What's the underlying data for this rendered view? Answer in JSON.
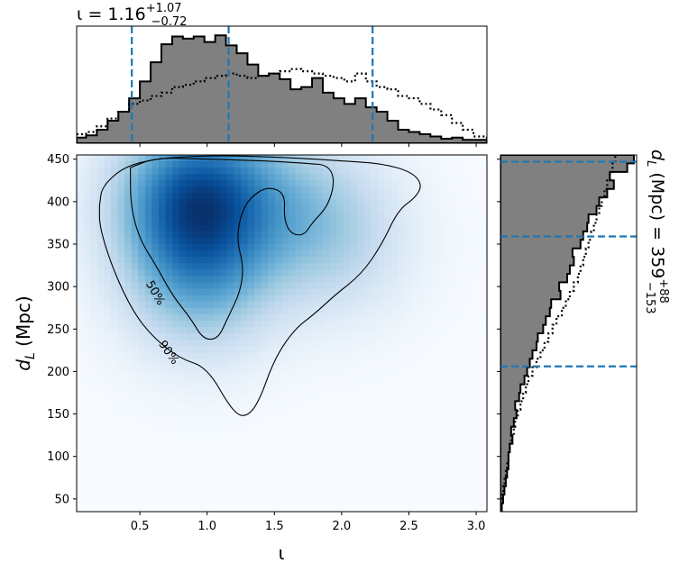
{
  "chart_data": [
    {
      "type": "heatmap",
      "panel": "joint",
      "xlabel": "ι",
      "ylabel_base": "d",
      "ylabel_sub": "L",
      "ylabel_unit": " (Mpc)",
      "xlim": [
        0.03,
        3.08
      ],
      "ylim": [
        35,
        455
      ],
      "xticks": [
        "0.5",
        "1.0",
        "1.5",
        "2.0",
        "2.5",
        "3.0"
      ],
      "yticks": [
        "50",
        "100",
        "150",
        "200",
        "250",
        "300",
        "350",
        "400",
        "450"
      ],
      "colormap": "Blues",
      "density_peaks": [
        {
          "x": 0.85,
          "y": 400,
          "weight": 1.0
        },
        {
          "x": 1.05,
          "y": 410,
          "weight": 0.7
        },
        {
          "x": 0.95,
          "y": 310,
          "weight": 0.75
        },
        {
          "x": 1.7,
          "y": 390,
          "weight": 0.45
        },
        {
          "x": 2.0,
          "y": 350,
          "weight": 0.3
        }
      ],
      "contours": [
        {
          "label": "50%",
          "points": [
            [
              0.43,
              440
            ],
            [
              0.62,
              452
            ],
            [
              1.0,
              450
            ],
            [
              1.45,
              448
            ],
            [
              1.75,
              445
            ],
            [
              1.9,
              443
            ],
            [
              1.95,
              425
            ],
            [
              1.9,
              395
            ],
            [
              1.78,
              375
            ],
            [
              1.72,
              360
            ],
            [
              1.62,
              362
            ],
            [
              1.57,
              380
            ],
            [
              1.58,
              410
            ],
            [
              1.45,
              418
            ],
            [
              1.32,
              405
            ],
            [
              1.25,
              385
            ],
            [
              1.22,
              355
            ],
            [
              1.27,
              325
            ],
            [
              1.25,
              295
            ],
            [
              1.15,
              262
            ],
            [
              1.08,
              238
            ],
            [
              0.97,
              238
            ],
            [
              0.88,
              262
            ],
            [
              0.74,
              290
            ],
            [
              0.62,
              325
            ],
            [
              0.5,
              355
            ],
            [
              0.43,
              395
            ],
            [
              0.43,
              440
            ]
          ]
        },
        {
          "label": "90%",
          "points": [
            [
              0.2,
              395
            ],
            [
              0.22,
              420
            ],
            [
              0.45,
              448
            ],
            [
              1.0,
              455
            ],
            [
              1.6,
              452
            ],
            [
              2.0,
              448
            ],
            [
              2.3,
              445
            ],
            [
              2.52,
              435
            ],
            [
              2.6,
              420
            ],
            [
              2.55,
              405
            ],
            [
              2.42,
              390
            ],
            [
              2.3,
              350
            ],
            [
              2.15,
              315
            ],
            [
              1.95,
              290
            ],
            [
              1.8,
              268
            ],
            [
              1.65,
              250
            ],
            [
              1.5,
              215
            ],
            [
              1.38,
              162
            ],
            [
              1.28,
              145
            ],
            [
              1.18,
              155
            ],
            [
              1.0,
              205
            ],
            [
              0.8,
              215
            ],
            [
              0.6,
              240
            ],
            [
              0.45,
              270
            ],
            [
              0.3,
              320
            ],
            [
              0.2,
              370
            ],
            [
              0.2,
              395
            ]
          ]
        }
      ],
      "contour_labels": [
        "50%",
        "90%"
      ]
    },
    {
      "type": "area",
      "panel": "top-marginal",
      "annotation_base": "ι = 1.16",
      "annotation_sup": "+1.07",
      "annotation_sub": "−0.72",
      "bin_edges": [
        0.03,
        0.1,
        0.18,
        0.26,
        0.34,
        0.42,
        0.5,
        0.58,
        0.66,
        0.74,
        0.82,
        0.9,
        0.98,
        1.06,
        1.14,
        1.22,
        1.3,
        1.38,
        1.46,
        1.54,
        1.62,
        1.7,
        1.78,
        1.86,
        1.94,
        2.02,
        2.1,
        2.18,
        2.26,
        2.34,
        2.42,
        2.5,
        2.58,
        2.66,
        2.74,
        2.82,
        2.9,
        2.98,
        3.08
      ],
      "series": [
        {
          "style": "filled-step",
          "color": "#808080",
          "values": [
            0.05,
            0.07,
            0.12,
            0.2,
            0.28,
            0.4,
            0.55,
            0.72,
            0.88,
            0.95,
            0.93,
            0.95,
            0.9,
            0.96,
            0.87,
            0.8,
            0.7,
            0.6,
            0.62,
            0.57,
            0.48,
            0.5,
            0.58,
            0.45,
            0.4,
            0.35,
            0.4,
            0.32,
            0.28,
            0.2,
            0.12,
            0.1,
            0.08,
            0.06,
            0.04,
            0.05,
            0.03,
            0.03
          ]
        },
        {
          "style": "dotted-step",
          "color": "#000000",
          "values": [
            0.08,
            0.1,
            0.15,
            0.22,
            0.28,
            0.35,
            0.38,
            0.42,
            0.45,
            0.5,
            0.52,
            0.55,
            0.58,
            0.6,
            0.62,
            0.6,
            0.58,
            0.6,
            0.62,
            0.64,
            0.66,
            0.64,
            0.62,
            0.6,
            0.58,
            0.55,
            0.62,
            0.55,
            0.5,
            0.48,
            0.42,
            0.4,
            0.35,
            0.3,
            0.25,
            0.18,
            0.12,
            0.06
          ]
        }
      ],
      "quantile_lines": [
        0.44,
        1.16,
        2.23
      ]
    },
    {
      "type": "area",
      "panel": "right-marginal",
      "annotation_base": "d",
      "annotation_sub_L": "L",
      "annotation_mid": " (Mpc) = 359",
      "annotation_sup": "+88",
      "annotation_sub": "−153",
      "bin_edges": [
        35,
        45,
        55,
        65,
        75,
        85,
        95,
        105,
        115,
        125,
        135,
        145,
        155,
        165,
        175,
        185,
        195,
        205,
        215,
        225,
        235,
        245,
        255,
        265,
        275,
        285,
        295,
        305,
        315,
        325,
        335,
        345,
        355,
        365,
        375,
        385,
        395,
        405,
        415,
        425,
        435,
        445,
        455
      ],
      "series": [
        {
          "style": "filled-step",
          "color": "#808080",
          "values": [
            0.01,
            0.02,
            0.03,
            0.04,
            0.05,
            0.06,
            0.06,
            0.07,
            0.09,
            0.08,
            0.1,
            0.12,
            0.11,
            0.14,
            0.15,
            0.18,
            0.2,
            0.22,
            0.24,
            0.27,
            0.28,
            0.32,
            0.34,
            0.37,
            0.38,
            0.45,
            0.44,
            0.5,
            0.52,
            0.55,
            0.54,
            0.6,
            0.62,
            0.65,
            0.66,
            0.72,
            0.74,
            0.8,
            0.85,
            0.82,
            0.95,
            1.0
          ]
        },
        {
          "style": "dotted-step",
          "color": "#000000",
          "values": [
            0.0,
            0.01,
            0.02,
            0.03,
            0.04,
            0.05,
            0.06,
            0.07,
            0.08,
            0.1,
            0.11,
            0.13,
            0.15,
            0.17,
            0.19,
            0.21,
            0.24,
            0.27,
            0.3,
            0.33,
            0.36,
            0.39,
            0.42,
            0.46,
            0.49,
            0.52,
            0.55,
            0.58,
            0.6,
            0.62,
            0.64,
            0.66,
            0.68,
            0.7,
            0.72,
            0.74,
            0.76,
            0.78,
            0.8,
            0.82,
            0.84,
            0.86
          ]
        }
      ],
      "quantile_lines": [
        206,
        359,
        447
      ]
    }
  ]
}
